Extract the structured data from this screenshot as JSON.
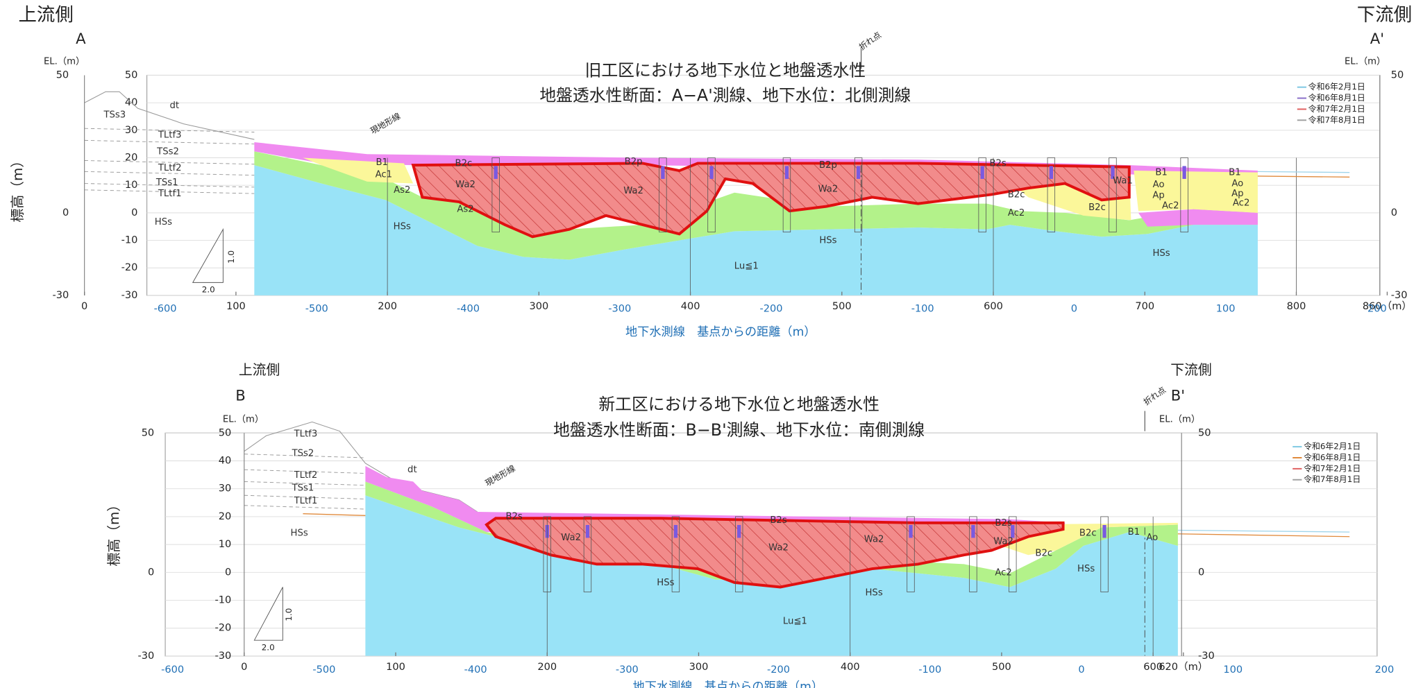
{
  "panels": [
    {
      "side_left": "上流側",
      "label_left": "A",
      "side_right": "下流側",
      "label_right": "A'",
      "bend": "折れ点",
      "title": [
        "旧工区における地下水位と地盤透水性",
        "地盤透水性断面：A−A'測線、地下水位：北側測線"
      ],
      "y_axis_label": "標高（m）",
      "el_unit": "EL.（m）",
      "yticks": [
        50,
        40,
        30,
        20,
        10,
        0,
        -10,
        -20,
        -30
      ],
      "yticks_outer": [
        50,
        0,
        -30
      ],
      "xticks": [
        0,
        100,
        200,
        300,
        400,
        500,
        600,
        700,
        800,
        {
          "value": 860,
          "label": "860（m）"
        }
      ],
      "xticks_gw": [
        -600,
        -500,
        -400,
        -300,
        -200,
        -100,
        0,
        100,
        200
      ],
      "x_axis_label": "地下水測線　基点からの距離（m）",
      "terrain_label": "現地形線",
      "scale": [
        "1.0",
        "2.0"
      ],
      "layers": [
        "TSs3",
        "dt",
        "TLtf3",
        "TSs2",
        "TLtf2",
        "TSs1",
        "TLtf1",
        "HSs",
        "B1",
        "Ac1",
        "As2",
        "B2c",
        "Wa2",
        "As2",
        "HSs",
        "B2p",
        "Wa2",
        "B2p",
        "Wa2",
        "HSs",
        "Lu≦1",
        "B2s",
        "B2c",
        "Ac2",
        "Wa1",
        "B2c",
        "B1",
        "Ao",
        "Ap",
        "Ac2",
        "HSs",
        "B1",
        "Ao",
        "Ap",
        "Ac2"
      ],
      "legend": [
        {
          "label": "令和6年2月1日",
          "color": "#7ec8e3"
        },
        {
          "label": "令和6年8月1日",
          "color": "#8a6fc9"
        },
        {
          "label": "令和7年2月1日",
          "color": "#e06060"
        },
        {
          "label": "令和7年8月1日",
          "color": "#a0a0a0"
        }
      ]
    },
    {
      "side_left": "上流側",
      "label_left": "B",
      "side_right": "下流側",
      "label_right": "B'",
      "bend": "折れ点",
      "title": [
        "新工区における地下水位と地盤透水性",
        "地盤透水性断面：B−B'測線、地下水位：南側測線"
      ],
      "y_axis_label": "標高（m）",
      "el_unit": "EL.（m）",
      "yticks": [
        50,
        40,
        30,
        20,
        10,
        0,
        -10,
        -20,
        -30
      ],
      "yticks_outer": [
        50,
        0,
        -30
      ],
      "xticks": [
        0,
        100,
        200,
        300,
        400,
        500,
        600,
        {
          "value": 620,
          "label": "620（m）"
        }
      ],
      "xticks_gw": [
        -600,
        -500,
        -400,
        -300,
        -200,
        -100,
        0,
        100,
        200
      ],
      "x_axis_label": "地下水測線　基点からの距離（m）",
      "terrain_label": "現地形線",
      "scale": [
        "1.0",
        "2.0"
      ],
      "layers": [
        "TLtf3",
        "TSs2",
        "TLtf2",
        "TSs1",
        "TLtf1",
        "HSs",
        "dt",
        "B2s",
        "Wa2",
        "B2s",
        "Wa2",
        "Wa2",
        "HSs",
        "HSs",
        "Lu≦1",
        "B2s",
        "Wa2",
        "B2c",
        "Ac2",
        "HSs",
        "B2c",
        "B1",
        "Ao"
      ],
      "legend": [
        {
          "label": "令和6年2月1日",
          "color": "#7ec8e3"
        },
        {
          "label": "令和6年8月1日",
          "color": "#e08a3c"
        },
        {
          "label": "令和7年2月1日",
          "color": "#e06060"
        },
        {
          "label": "令和7年8月1日",
          "color": "#a0a0a0"
        }
      ]
    }
  ]
}
